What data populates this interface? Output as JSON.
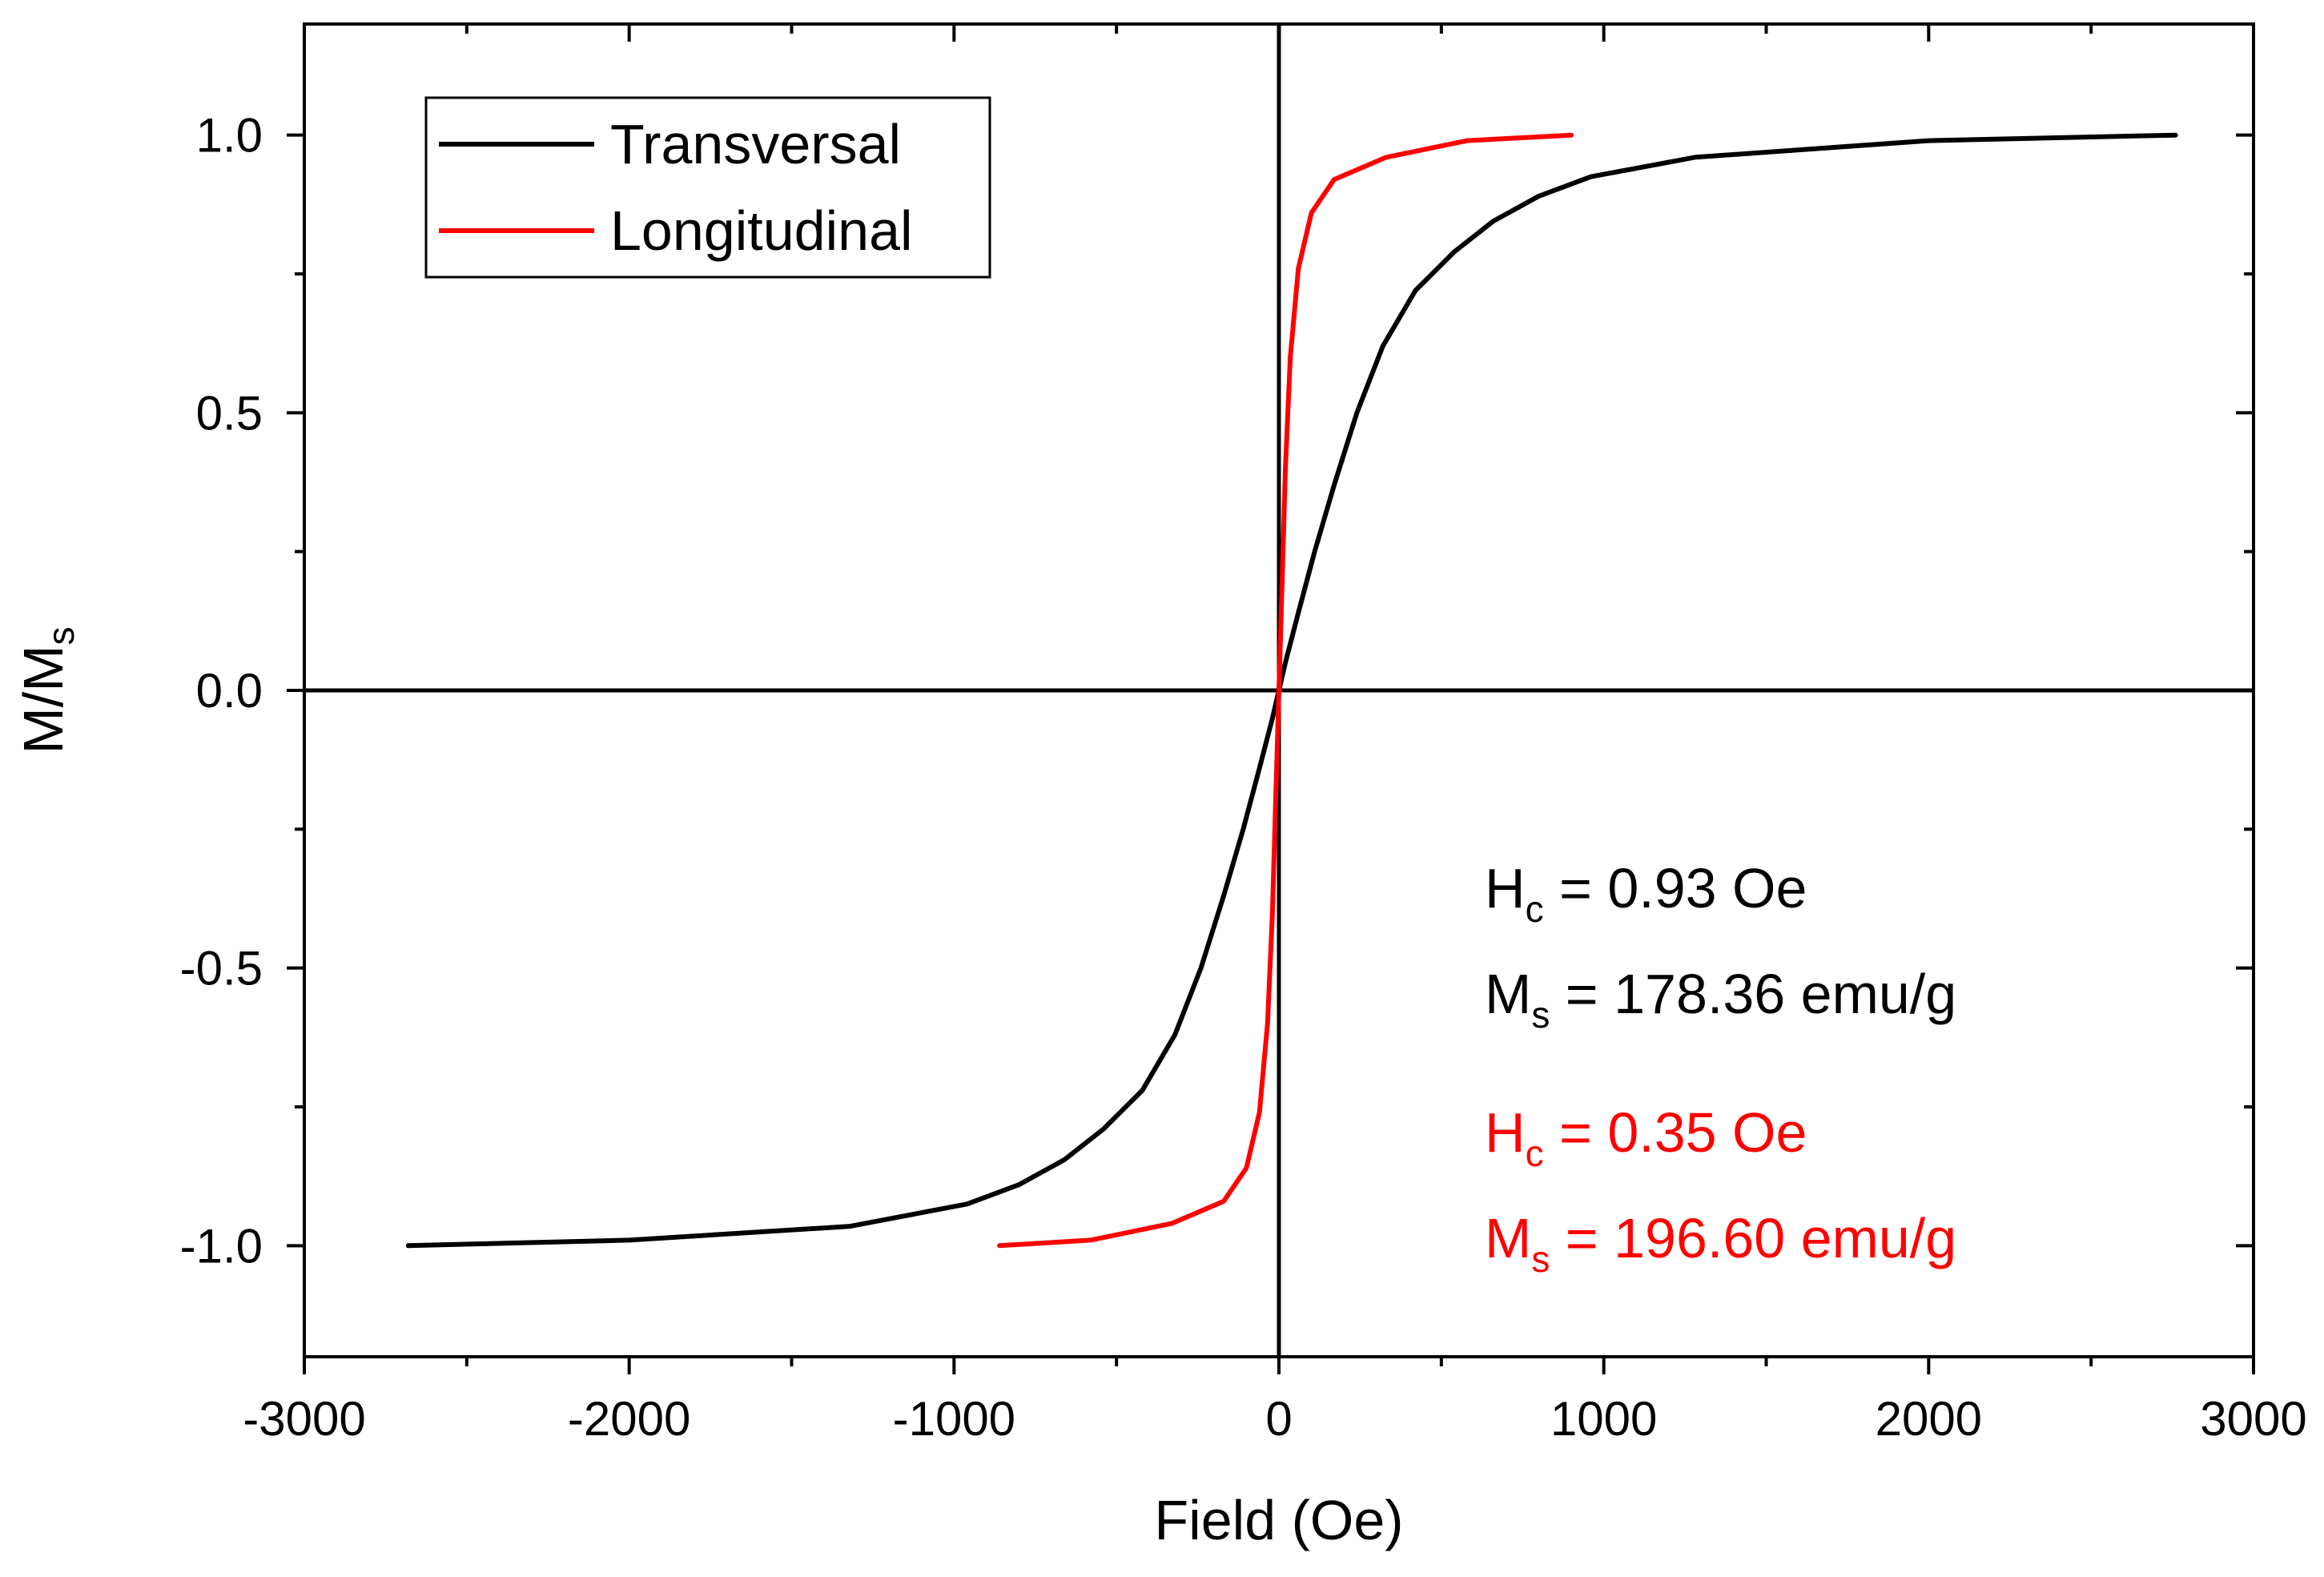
{
  "chart_data": {
    "type": "line",
    "title": "",
    "xlabel": "Field (Oe)",
    "ylabel": {
      "main": "M/M",
      "sub": "s"
    },
    "xlim": [
      -3000,
      3000
    ],
    "ylim": [
      -1.2,
      1.2
    ],
    "xticks": [
      -3000,
      -2000,
      -1000,
      0,
      1000,
      2000,
      3000
    ],
    "xtick_labels": [
      "-3000",
      "-2000",
      "-1000",
      "0",
      "1000",
      "2000",
      "3000"
    ],
    "yticks": [
      -1.0,
      -0.5,
      0.0,
      0.5,
      1.0
    ],
    "ytick_labels": [
      "-1.0",
      "-0.5",
      "0.0",
      "0.5",
      "1.0"
    ],
    "grid": false,
    "legend_position": "top-left",
    "series": [
      {
        "name": "Transversal",
        "color": "#000000",
        "x": [
          -2680,
          -2000,
          -1320,
          -960,
          -800,
          -660,
          -540,
          -420,
          -320,
          -240,
          -170,
          -110,
          -60,
          -20,
          0,
          20,
          60,
          110,
          170,
          240,
          320,
          420,
          540,
          660,
          800,
          960,
          1280,
          2000,
          2760
        ],
        "y": [
          -1.0,
          -0.99,
          -0.965,
          -0.925,
          -0.89,
          -0.845,
          -0.79,
          -0.72,
          -0.62,
          -0.5,
          -0.37,
          -0.25,
          -0.14,
          -0.05,
          0.0,
          0.05,
          0.14,
          0.25,
          0.37,
          0.5,
          0.62,
          0.72,
          0.79,
          0.845,
          0.89,
          0.925,
          0.96,
          0.99,
          1.0
        ]
      },
      {
        "name": "Longitudinal",
        "color": "#ff0000",
        "x": [
          -860,
          -580,
          -330,
          -170,
          -100,
          -60,
          -35,
          -20,
          -10,
          0,
          10,
          20,
          35,
          60,
          100,
          170,
          330,
          580,
          900
        ],
        "y": [
          -1.0,
          -0.99,
          -0.96,
          -0.92,
          -0.86,
          -0.76,
          -0.6,
          -0.4,
          -0.2,
          0.0,
          0.2,
          0.4,
          0.6,
          0.76,
          0.86,
          0.92,
          0.96,
          0.99,
          1.0
        ]
      }
    ],
    "annotations": [
      {
        "main": "H",
        "sub": "c",
        "text": " = 0.93 Oe",
        "color": "#000000"
      },
      {
        "main": "M",
        "sub": "s",
        "text": " = 178.36 emu/g",
        "color": "#000000"
      },
      {
        "main": "H",
        "sub": "c",
        "text": " = 0.35 Oe",
        "color": "#ff0000"
      },
      {
        "main": "M",
        "sub": "s",
        "text": " = 196.60 emu/g",
        "color": "#ff0000"
      }
    ]
  }
}
